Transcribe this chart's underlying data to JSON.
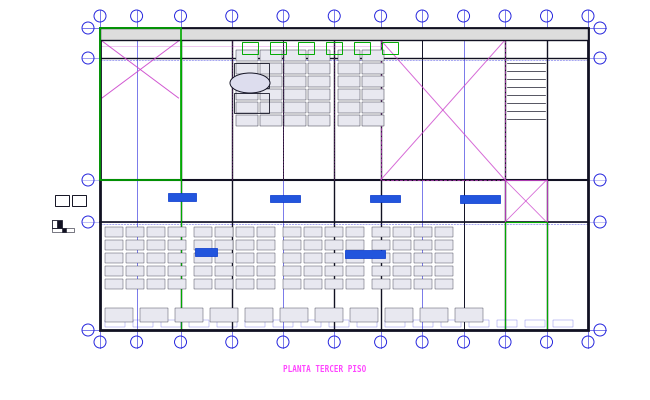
{
  "title": "PLANTA TERCER PISO",
  "title_color": "#FF44FF",
  "title_fontsize": 5.5,
  "bg_color": "#FFFFFF",
  "fig_width": 6.5,
  "fig_height": 4.0,
  "dpi": 100,
  "blue": "#2222DD",
  "magenta": "#CC44CC",
  "green": "#00AA00",
  "dark": "#111122",
  "gray": "#555566",
  "cyan": "#0088AA",
  "blue_fill": "#2255DD"
}
